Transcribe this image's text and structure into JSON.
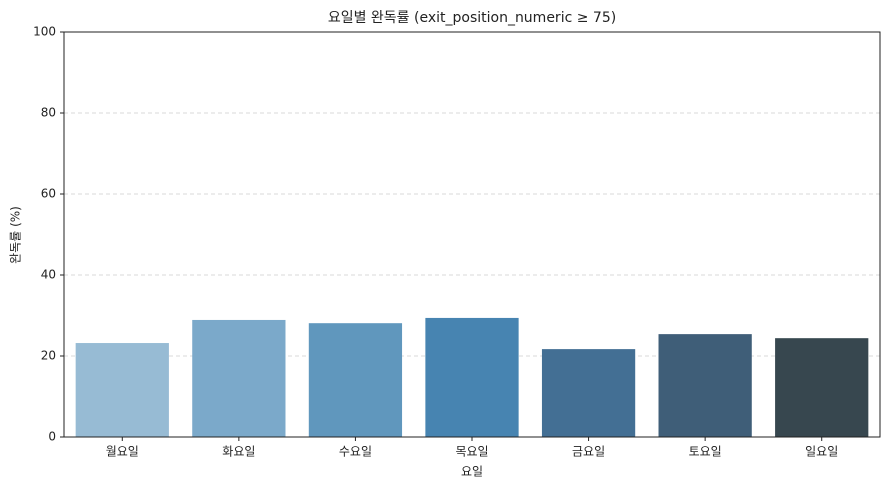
{
  "chart_data": {
    "type": "bar",
    "title": "요일별 완독률 (exit_position_numeric ≥ 75)",
    "x_label": "요일",
    "y_label": "완독률 (%)",
    "categories": [
      "월요일",
      "화요일",
      "수요일",
      "목요일",
      "금요일",
      "토요일",
      "일요일"
    ],
    "values": [
      23.2,
      28.9,
      28.1,
      29.4,
      21.7,
      25.4,
      24.4
    ],
    "colors": [
      "#97bbd4",
      "#7ba9ca",
      "#6097bd",
      "#4784b1",
      "#436f94",
      "#3f5e78",
      "#37474f"
    ],
    "ylim": [
      0,
      100
    ],
    "yticks": [
      0,
      20,
      40,
      60,
      80,
      100
    ],
    "grid": true
  }
}
